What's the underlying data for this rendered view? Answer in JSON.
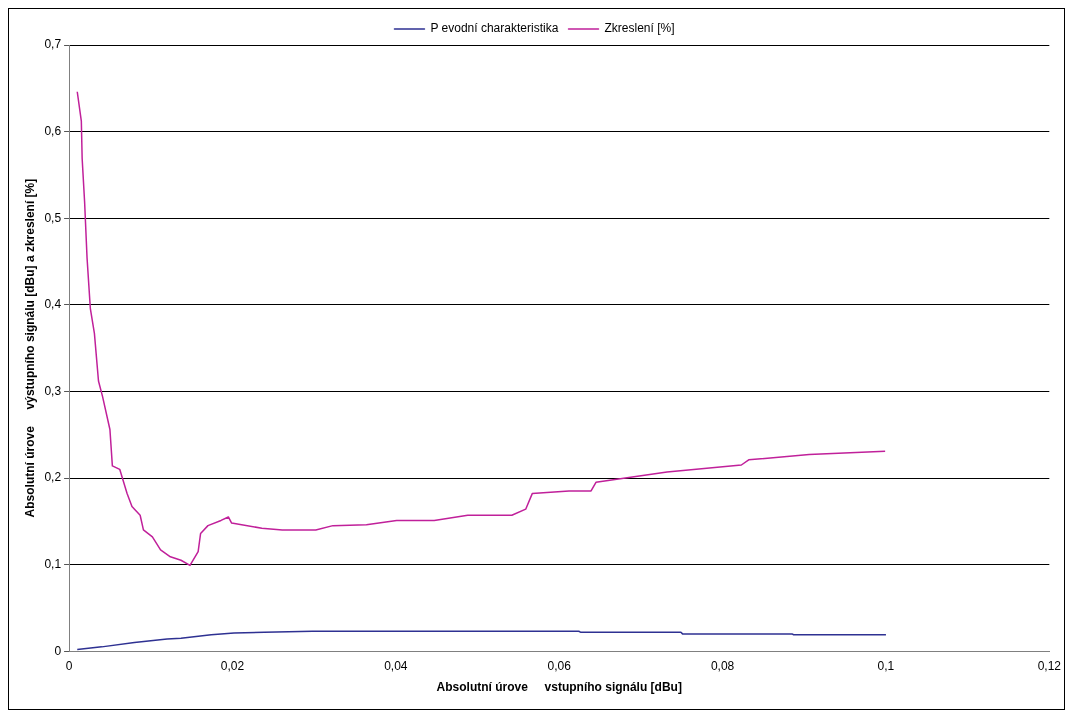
{
  "chart_data": {
    "type": "line",
    "xlabel": "Absolutní úrove     vstupního signálu [dBu]",
    "ylabel": "Absolutní úrove     výstupního signálu [dBu] a zkreslení [%]",
    "xlim": [
      0,
      0.12
    ],
    "xticks": [
      0,
      {
        "value": 0.02,
        "label": "0,02"
      },
      {
        "value": 0.04,
        "label": "0,04"
      },
      {
        "value": 0.06,
        "label": "0,06"
      },
      {
        "value": 0.08,
        "label": "0,08"
      },
      {
        "value": 0.1,
        "label": "0,1"
      },
      {
        "value": 0.12,
        "label": "0,12"
      }
    ],
    "ylim": [
      0,
      0.7
    ],
    "yticks": [
      0,
      {
        "value": 0.1,
        "label": "0,1"
      },
      {
        "value": 0.2,
        "label": "0,2"
      },
      {
        "value": 0.3,
        "label": "0,3"
      },
      {
        "value": 0.4,
        "label": "0,4"
      },
      {
        "value": 0.5,
        "label": "0,5"
      },
      {
        "value": 0.6,
        "label": "0,6"
      },
      {
        "value": 0.7,
        "label": "0,7"
      }
    ],
    "grid": "y",
    "legend": "top",
    "marker": "none",
    "line_style": "solid",
    "series": [
      {
        "name": "P evodní charakteristika",
        "color": "#2e3192",
        "x": [
          0.001,
          0.004,
          0.008,
          0.012,
          0.0137,
          0.0174,
          0.0202,
          0.0239,
          0.0298,
          0.0624,
          0.0626,
          0.0749,
          0.0751,
          0.0885,
          0.0887,
          0.1
        ],
        "values": [
          0.002,
          0.005,
          0.01,
          0.014,
          0.015,
          0.019,
          0.021,
          0.022,
          0.023,
          0.023,
          0.022,
          0.022,
          0.02,
          0.02,
          0.019,
          0.019
        ]
      },
      {
        "name": "Zkreslení [%]",
        "color": "#c0209a",
        "x": [
          0.001,
          0.0015,
          0.0016,
          0.0019,
          0.0022,
          0.0026,
          0.0031,
          0.0036,
          0.0041,
          0.005,
          0.0053,
          0.0062,
          0.0071,
          0.0077,
          0.0087,
          0.0091,
          0.0102,
          0.0112,
          0.0124,
          0.0137,
          0.0148,
          0.0158,
          0.0161,
          0.017,
          0.0186,
          0.0195,
          0.0199,
          0.0236,
          0.0261,
          0.0302,
          0.0323,
          0.0364,
          0.0401,
          0.0447,
          0.0488,
          0.0542,
          0.0559,
          0.0567,
          0.0612,
          0.0639,
          0.0645,
          0.0732,
          0.0823,
          0.0832,
          0.0906,
          0.0999
        ],
        "values": [
          0.646,
          0.612,
          0.569,
          0.519,
          0.454,
          0.396,
          0.367,
          0.312,
          0.294,
          0.256,
          0.214,
          0.21,
          0.182,
          0.167,
          0.157,
          0.14,
          0.132,
          0.117,
          0.109,
          0.105,
          0.099,
          0.115,
          0.136,
          0.145,
          0.151,
          0.155,
          0.148,
          0.142,
          0.14,
          0.14,
          0.145,
          0.146,
          0.151,
          0.151,
          0.157,
          0.157,
          0.164,
          0.182,
          0.185,
          0.185,
          0.195,
          0.207,
          0.215,
          0.221,
          0.227,
          0.231
        ]
      }
    ]
  }
}
